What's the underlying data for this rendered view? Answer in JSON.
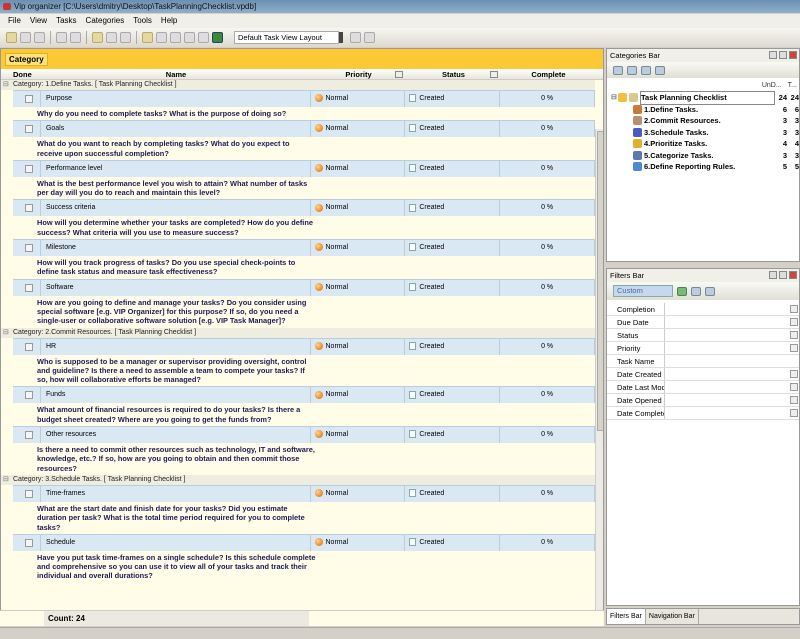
{
  "window": {
    "title": "Vip organizer [C:\\Users\\dmitry\\Desktop\\TaskPlanningChecklist.vpdb]"
  },
  "menu": [
    "File",
    "View",
    "Tasks",
    "Categories",
    "Tools",
    "Help"
  ],
  "toolbar": {
    "layout_value": "Default Task View Layout"
  },
  "grid": {
    "group_by": "Category",
    "columns": [
      "Done",
      "Name",
      "Priority",
      "Status",
      "Complete"
    ],
    "categories": [
      {
        "label": "Category: 1.Define Tasks.    [ Task Planning Checklist ]",
        "tasks": [
          {
            "name": "Purpose",
            "priority": "Normal",
            "status": "Created",
            "complete": "0 %",
            "desc": "Why do you need to complete tasks? What is the purpose of doing so?"
          },
          {
            "name": "Goals",
            "priority": "Normal",
            "status": "Created",
            "complete": "0 %",
            "desc": "What do you want to reach by completing tasks? What do you expect to receive upon successful completion?"
          },
          {
            "name": "Performance level",
            "priority": "Normal",
            "status": "Created",
            "complete": "0 %",
            "desc": "What is the best performance level you wish to attain? What number of tasks per day will you do to reach and maintain this level?"
          },
          {
            "name": "Success criteria",
            "priority": "Normal",
            "status": "Created",
            "complete": "0 %",
            "desc": "How will you determine whether your tasks are completed? How do you define success? What criteria will you use to measure success?"
          },
          {
            "name": "Milestone",
            "priority": "Normal",
            "status": "Created",
            "complete": "0 %",
            "desc": "How will you track progress of tasks? Do you use special check-points to define task status and measure task effectiveness?"
          },
          {
            "name": "Software",
            "priority": "Normal",
            "status": "Created",
            "complete": "0 %",
            "desc": "How are you going to define and manage your tasks? Do you consider using special software [e.g. VIP Organizer] for this purpose? If so, do you need a single-user or collaborative software solution [e.g. VIP Task Manager]?"
          }
        ]
      },
      {
        "label": "Category: 2.Commit Resources.    [ Task Planning Checklist ]",
        "tasks": [
          {
            "name": "HR",
            "priority": "Normal",
            "status": "Created",
            "complete": "0 %",
            "desc": "Who is supposed to be a manager or supervisor providing oversight, control and guideline? Is there a need to assemble a team to compete your tasks? If so, how will collaborative efforts be managed?"
          },
          {
            "name": "Funds",
            "priority": "Normal",
            "status": "Created",
            "complete": "0 %",
            "desc": "What amount of financial resources is required to do your tasks? Is there a budget sheet created? Where are you going to get the funds from?"
          },
          {
            "name": "Other resources",
            "priority": "Normal",
            "status": "Created",
            "complete": "0 %",
            "desc": "Is there a need to commit other resources such as technology, IT and software, knowledge, etc.? If so, how are you going to obtain and then commit those resources?"
          }
        ]
      },
      {
        "label": "Category: 3.Schedule Tasks.    [ Task Planning Checklist ]",
        "tasks": [
          {
            "name": "Time-frames",
            "priority": "Normal",
            "status": "Created",
            "complete": "0 %",
            "desc": "What are the start date and finish date for your tasks? Did you estimate duration per task? What is the total time period required for you to complete tasks?"
          },
          {
            "name": "Schedule",
            "priority": "Normal",
            "status": "Created",
            "complete": "0 %",
            "desc": "Have you put task time-frames on a single schedule? Is this schedule complete and comprehensive so you can use it to view all of your tasks and track their individual and overall durations?"
          }
        ]
      }
    ],
    "count": "Count: 24"
  },
  "categories_bar": {
    "title": "Categories Bar",
    "col1": "UnD...",
    "col2": "T...",
    "nodes": [
      {
        "name": "Task Planning Checklist",
        "undone": "24",
        "total": "24",
        "icon": "book-icon",
        "color": "#d9c890"
      },
      {
        "name": "1.Define Tasks.",
        "undone": "6",
        "total": "6",
        "icon": "people-icon",
        "color": "#c87a3a"
      },
      {
        "name": "2.Commit Resources.",
        "undone": "3",
        "total": "3",
        "icon": "document-icon",
        "color": "#b89070"
      },
      {
        "name": "3.Schedule Tasks.",
        "undone": "3",
        "total": "3",
        "icon": "flag-icon",
        "color": "#4a5ac0"
      },
      {
        "name": "4.Prioritize Tasks.",
        "undone": "4",
        "total": "4",
        "icon": "key-icon",
        "color": "#e0b030"
      },
      {
        "name": "5.Categorize Tasks.",
        "undone": "3",
        "total": "3",
        "icon": "wrench-icon",
        "color": "#5a7ab0"
      },
      {
        "name": "6.Define Reporting Rules.",
        "undone": "5",
        "total": "5",
        "icon": "database-icon",
        "color": "#4a8ad0"
      }
    ]
  },
  "filters_bar": {
    "title": "Filters Bar",
    "preset": "Custom",
    "fields": [
      {
        "label": "Completion",
        "dropdown": true
      },
      {
        "label": "Due Date",
        "dropdown": true
      },
      {
        "label": "Status",
        "dropdown": true
      },
      {
        "label": "Priority",
        "dropdown": true
      },
      {
        "label": "Task Name",
        "dropdown": false
      },
      {
        "label": "Date Created",
        "dropdown": true
      },
      {
        "label": "Date Last Modifi",
        "dropdown": true
      },
      {
        "label": "Date Opened",
        "dropdown": true
      },
      {
        "label": "Date Completed",
        "dropdown": true
      }
    ]
  },
  "tabs": [
    "Filters Bar",
    "Navigation Bar"
  ]
}
